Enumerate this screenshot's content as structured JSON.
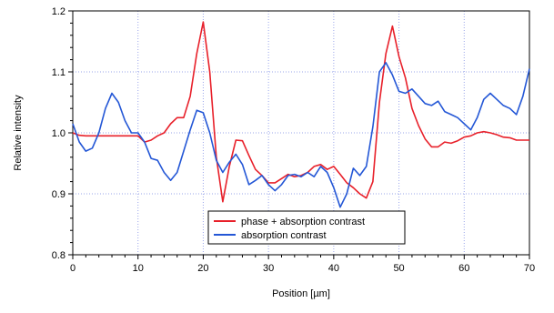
{
  "chart_data": {
    "type": "line",
    "title": "",
    "xlabel": "Position [µm]",
    "ylabel": "Relative intensity",
    "xlim": [
      0,
      70
    ],
    "ylim": [
      0.8,
      1.2
    ],
    "x_ticks": [
      0,
      10,
      20,
      30,
      40,
      50,
      60,
      70
    ],
    "y_ticks": [
      0.8,
      0.9,
      1.0,
      1.1,
      1.2
    ],
    "x_tick_labels": [
      "0",
      "10",
      "20",
      "30",
      "40",
      "50",
      "60",
      "70"
    ],
    "y_tick_labels": [
      "0.8",
      "0.9",
      "1.0",
      "1.1",
      "1.2"
    ],
    "grid": true,
    "legend": "bottom-center",
    "series": [
      {
        "name": "phase + absorption contrast",
        "color": "#e8202a",
        "x": [
          0,
          1,
          2,
          3,
          4,
          5,
          6,
          7,
          8,
          9,
          10,
          11,
          12,
          13,
          14,
          15,
          16,
          17,
          18,
          19,
          20,
          21,
          22,
          23,
          24,
          25,
          26,
          27,
          28,
          29,
          30,
          31,
          32,
          33,
          34,
          35,
          36,
          37,
          38,
          39,
          40,
          41,
          42,
          43,
          44,
          45,
          46,
          47,
          48,
          49,
          50,
          51,
          52,
          53,
          54,
          55,
          56,
          57,
          58,
          59,
          60,
          61,
          62,
          63,
          64,
          65,
          66,
          67,
          68,
          69,
          70
        ],
        "y": [
          1.0,
          0.996,
          0.995,
          0.995,
          0.995,
          0.995,
          0.995,
          0.995,
          0.995,
          0.995,
          0.995,
          0.985,
          0.988,
          0.995,
          1.0,
          1.015,
          1.025,
          1.025,
          1.06,
          1.13,
          1.182,
          1.1,
          0.96,
          0.887,
          0.945,
          0.988,
          0.987,
          0.963,
          0.94,
          0.93,
          0.918,
          0.918,
          0.925,
          0.932,
          0.928,
          0.93,
          0.935,
          0.945,
          0.948,
          0.94,
          0.945,
          0.932,
          0.918,
          0.91,
          0.9,
          0.893,
          0.92,
          1.05,
          1.13,
          1.175,
          1.125,
          1.09,
          1.04,
          1.012,
          0.99,
          0.977,
          0.977,
          0.985,
          0.983,
          0.987,
          0.993,
          0.995,
          1.0,
          1.002,
          1.0,
          0.997,
          0.993,
          0.992,
          0.988,
          0.988,
          0.988
        ]
      },
      {
        "name": "absorption contrast",
        "color": "#2457d6",
        "x": [
          0,
          1,
          2,
          3,
          4,
          5,
          6,
          7,
          8,
          9,
          10,
          11,
          12,
          13,
          14,
          15,
          16,
          17,
          18,
          19,
          20,
          21,
          22,
          23,
          24,
          25,
          26,
          27,
          28,
          29,
          30,
          31,
          32,
          33,
          34,
          35,
          36,
          37,
          38,
          39,
          40,
          41,
          42,
          43,
          44,
          45,
          46,
          47,
          48,
          49,
          50,
          51,
          52,
          53,
          54,
          55,
          56,
          57,
          58,
          59,
          60,
          61,
          62,
          63,
          64,
          65,
          66,
          67,
          68,
          69,
          70
        ],
        "y": [
          1.015,
          0.985,
          0.97,
          0.975,
          1.0,
          1.04,
          1.065,
          1.05,
          1.02,
          1.0,
          1.0,
          0.985,
          0.958,
          0.955,
          0.935,
          0.922,
          0.935,
          0.97,
          1.005,
          1.037,
          1.033,
          1.0,
          0.955,
          0.935,
          0.952,
          0.965,
          0.948,
          0.915,
          0.922,
          0.93,
          0.915,
          0.905,
          0.915,
          0.93,
          0.932,
          0.928,
          0.935,
          0.928,
          0.945,
          0.935,
          0.91,
          0.878,
          0.9,
          0.942,
          0.93,
          0.945,
          1.01,
          1.1,
          1.115,
          1.095,
          1.068,
          1.065,
          1.072,
          1.06,
          1.048,
          1.045,
          1.052,
          1.035,
          1.03,
          1.025,
          1.015,
          1.005,
          1.025,
          1.055,
          1.065,
          1.055,
          1.045,
          1.04,
          1.03,
          1.06,
          1.105
        ]
      }
    ]
  }
}
